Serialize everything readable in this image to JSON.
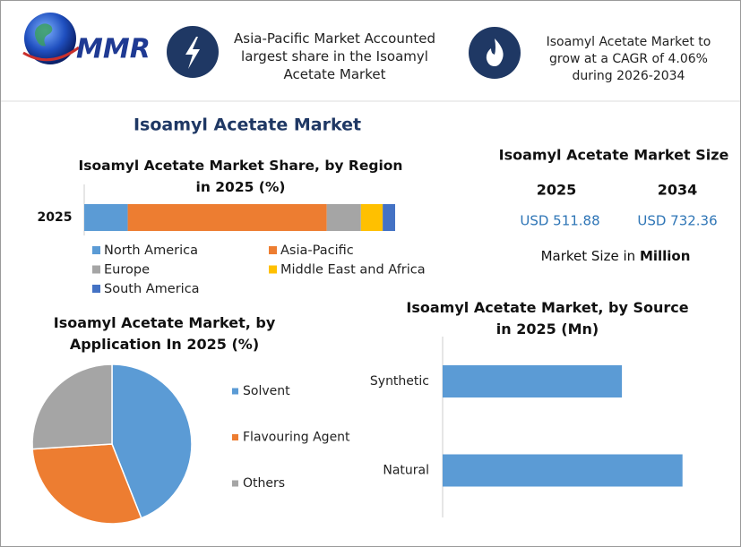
{
  "header": {
    "logo": "MMR",
    "notes": [
      "Asia-Pacific Market Accounted largest share in the Isoamyl Acetate Market",
      "Isoamyl Acetate Market to grow at a CAGR of 4.06% during 2026-2034"
    ]
  },
  "title": "Isoamyl Acetate Market",
  "market_size": {
    "title": "Isoamyl Acetate Market Size",
    "years": [
      "2025",
      "2034"
    ],
    "values": [
      "USD 511.88",
      "USD 732.36"
    ],
    "note": "Market Size in",
    "note_unit": "Million"
  },
  "chart_data": [
    {
      "type": "stacked-bar",
      "title": "Isoamyl Acetate Market Share, by Region in 2025 (%)",
      "categories": [
        "2025"
      ],
      "series": [
        {
          "name": "North America",
          "color": "#5b9bd5",
          "values": [
            14
          ]
        },
        {
          "name": "Asia-Pacific",
          "color": "#ed7d31",
          "values": [
            64
          ]
        },
        {
          "name": "Europe",
          "color": "#a5a5a5",
          "values": [
            11
          ]
        },
        {
          "name": "Middle East and Africa",
          "color": "#ffc000",
          "values": [
            7
          ]
        },
        {
          "name": "South America",
          "color": "#4472c4",
          "values": [
            4
          ]
        }
      ],
      "xlim": [
        0,
        100
      ]
    },
    {
      "type": "pie",
      "title": "Isoamyl Acetate Market, by Application In 2025 (%)",
      "categories": [
        "Solvent",
        "Flavouring Agent",
        "Others"
      ],
      "values": [
        44,
        30,
        26
      ],
      "colors": [
        "#5b9bd5",
        "#ed7d31",
        "#a5a5a5"
      ]
    },
    {
      "type": "hbar",
      "title": "Isoamyl Acetate Market, by Source in 2025 (Mn)",
      "categories": [
        "Synthetic",
        "Natural"
      ],
      "values": [
        219,
        293
      ],
      "color": "#5b9bd5",
      "xlim": [
        0,
        336
      ]
    }
  ]
}
